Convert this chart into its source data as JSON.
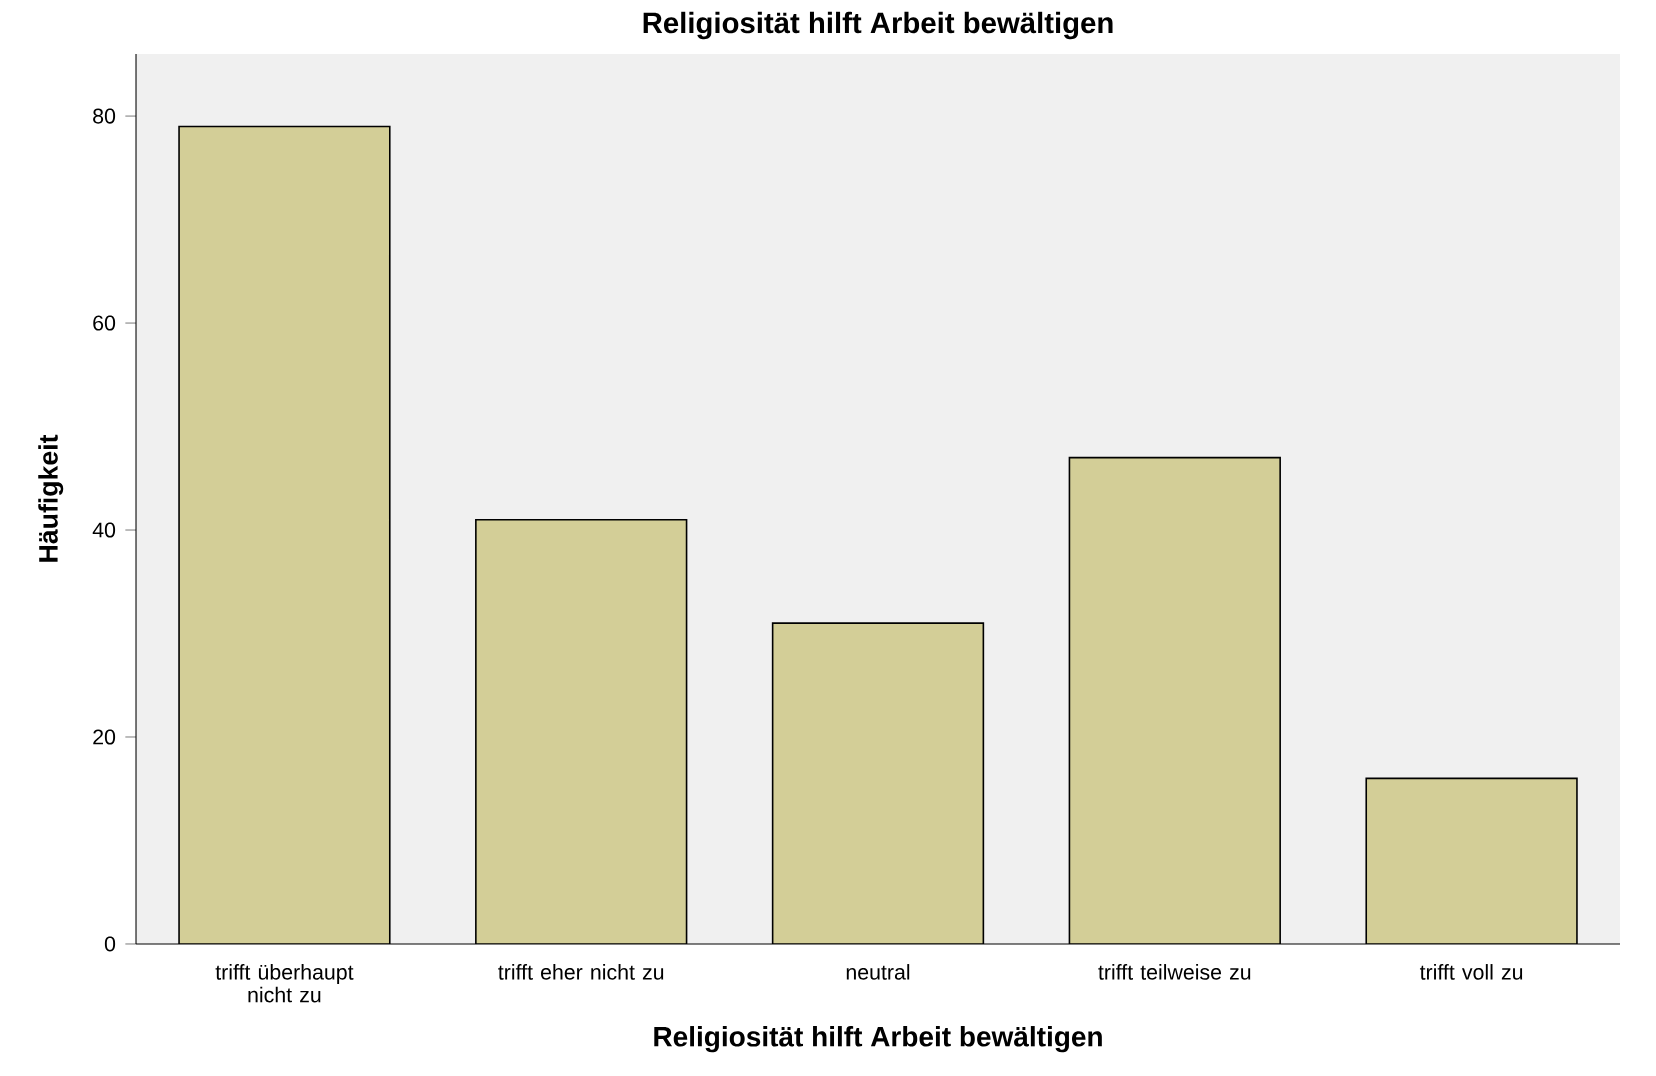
{
  "chart_data": {
    "type": "bar",
    "title": "Religiosität hilft Arbeit bewältigen",
    "xlabel": "Religiosität hilft Arbeit bewältigen",
    "ylabel": "Häufigkeit",
    "categories": [
      "trifft überhaupt nicht zu",
      "trifft eher nicht zu",
      "neutral",
      "trifft teilweise zu",
      "trifft voll zu"
    ],
    "values": [
      79,
      41,
      31,
      47,
      16
    ],
    "color": "#d3ce97",
    "ylim": [
      0,
      86
    ],
    "yticks": [
      0,
      20,
      40,
      60,
      80
    ]
  }
}
